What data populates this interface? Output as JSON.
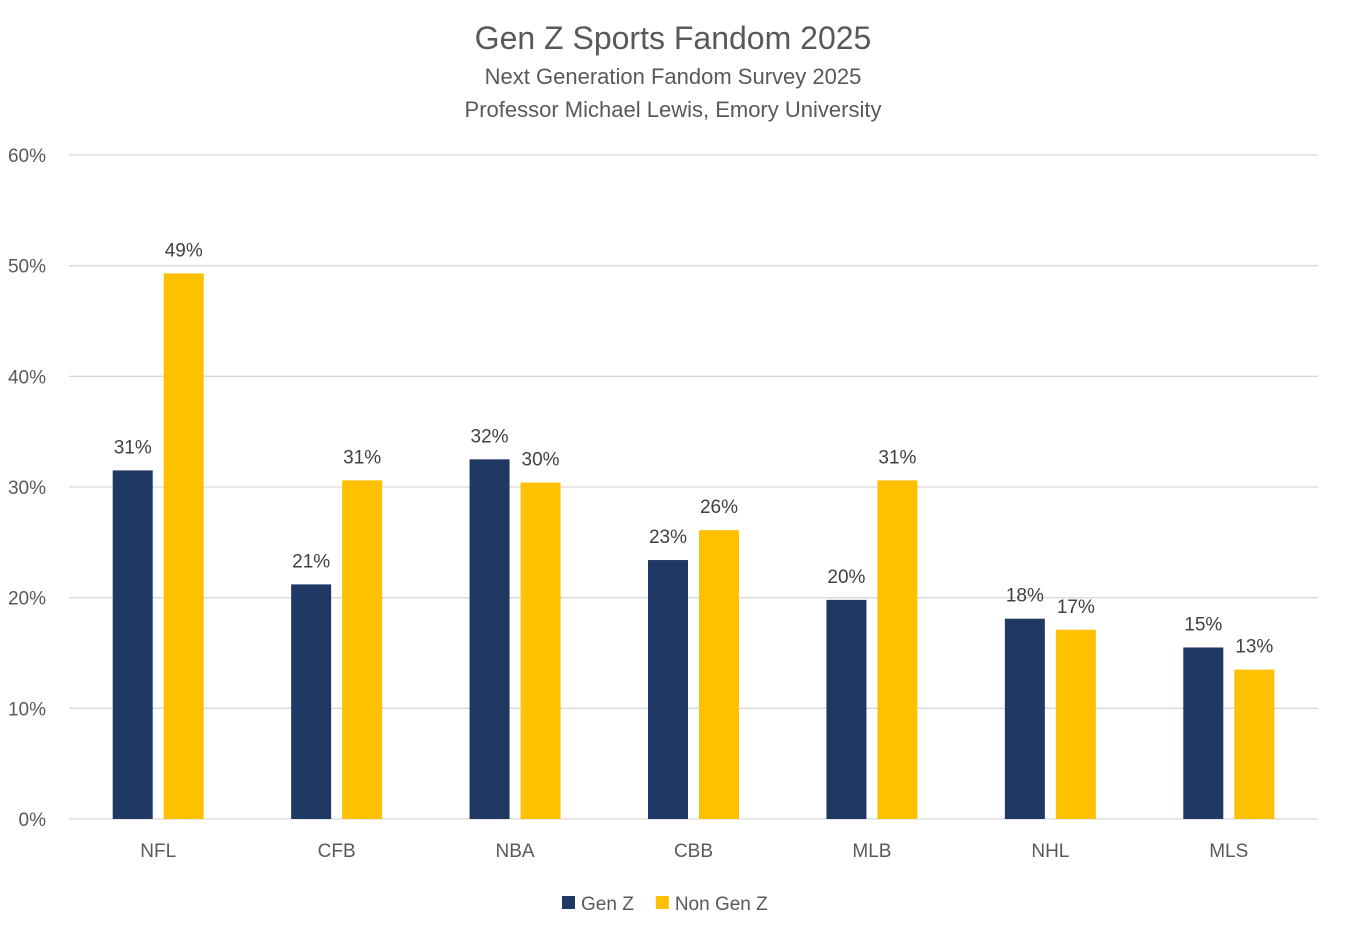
{
  "chart_data": {
    "type": "bar",
    "title": "Gen Z Sports Fandom 2025",
    "subtitles": [
      "Next Generation Fandom Survey 2025",
      "Professor Michael Lewis, Emory University"
    ],
    "categories": [
      "NFL",
      "CFB",
      "NBA",
      "CBB",
      "MLB",
      "NHL",
      "MLS"
    ],
    "series": [
      {
        "name": "Gen Z",
        "color": "#203864",
        "values": [
          31.5,
          21.2,
          32.5,
          23.4,
          19.8,
          18.1,
          15.5
        ],
        "labels": [
          "31%",
          "21%",
          "32%",
          "23%",
          "20%",
          "18%",
          "15%"
        ]
      },
      {
        "name": "Non Gen Z",
        "color": "#FFC000",
        "values": [
          49.3,
          30.6,
          30.4,
          26.1,
          30.6,
          17.1,
          13.5
        ],
        "labels": [
          "49%",
          "31%",
          "30%",
          "26%",
          "31%",
          "17%",
          "13%"
        ]
      }
    ],
    "ylim": [
      0,
      60
    ],
    "yticks": [
      "0%",
      "10%",
      "20%",
      "30%",
      "40%",
      "50%",
      "60%"
    ],
    "xlabel": "",
    "ylabel": "",
    "grid": true,
    "legend_position": "bottom"
  }
}
